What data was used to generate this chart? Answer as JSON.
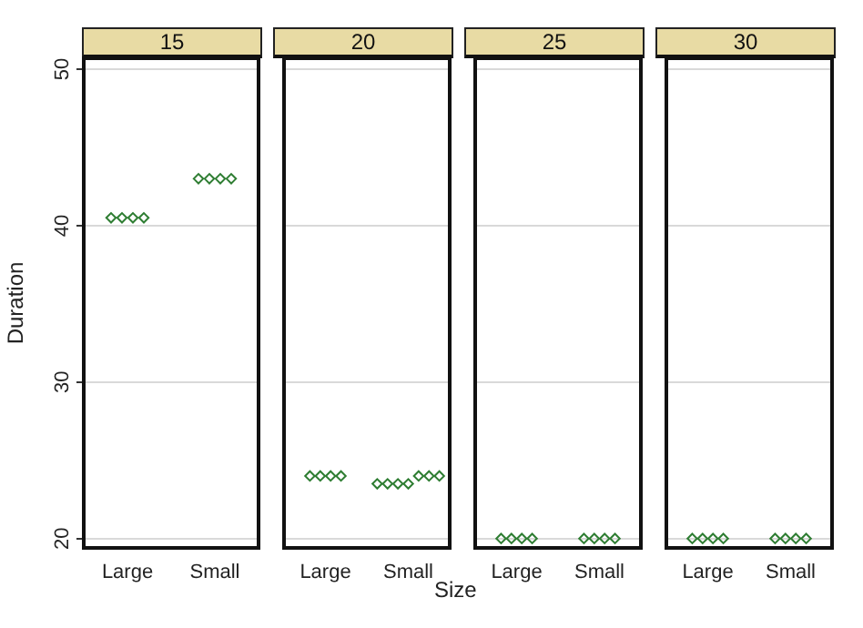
{
  "chart_data": [
    {
      "type": "scatter",
      "title": "15",
      "ylabel": "Duration",
      "categories": [
        "Large",
        "Small"
      ],
      "series": [
        {
          "color": "#2e7d32",
          "x": [
            "Large",
            "Large",
            "Large",
            "Large",
            "Small",
            "Small",
            "Small",
            "Small"
          ],
          "values": [
            40.5,
            40.5,
            40.5,
            40.5,
            43,
            43,
            43,
            43
          ]
        }
      ],
      "ylim": [
        19.4,
        50.7
      ],
      "yticks": [
        20,
        30,
        40,
        50
      ],
      "grid": "y",
      "marker": "diamond"
    },
    {
      "type": "scatter",
      "title": "20",
      "xlabel": "Size",
      "categories": [
        "Large",
        "Small"
      ],
      "series": [
        {
          "color": "#2e7d32",
          "x": [
            "Large",
            "Large",
            "Large",
            "Large",
            "Small",
            "Small",
            "Small",
            "Small",
            "Small",
            "Small",
            "Small"
          ],
          "values": [
            24,
            24,
            24,
            24,
            23.5,
            23.5,
            23.5,
            23.5,
            24,
            24,
            24
          ]
        }
      ],
      "ylim": [
        19.4,
        50.7
      ],
      "yticks": [
        20,
        30,
        40,
        50
      ],
      "grid": "y",
      "marker": "diamond",
      "tick_labels": "x"
    },
    {
      "type": "scatter",
      "title": "25",
      "categories": [
        "Large",
        "Small"
      ],
      "series": [
        {
          "color": "#2e7d32",
          "x": [
            "Large",
            "Large",
            "Large",
            "Large",
            "Small",
            "Small",
            "Small",
            "Small"
          ],
          "values": [
            20,
            20,
            20,
            20,
            20,
            20,
            20,
            20
          ]
        }
      ],
      "ylim": [
        19.4,
        50.7
      ],
      "yticks": [
        20,
        30,
        40,
        50
      ],
      "grid": "y",
      "marker": "diamond",
      "tick_labels": "x"
    },
    {
      "type": "scatter",
      "title": "30",
      "categories": [
        "Large",
        "Small"
      ],
      "series": [
        {
          "color": "#2e7d32",
          "x": [
            "Large",
            "Large",
            "Large",
            "Large",
            "Small",
            "Small",
            "Small",
            "Small"
          ],
          "values": [
            20,
            20,
            20,
            20,
            20,
            20,
            20,
            20
          ]
        }
      ],
      "ylim": [
        19.4,
        50.7
      ],
      "yticks": [
        20,
        30,
        40,
        50
      ],
      "grid": "y",
      "marker": "diamond",
      "tick_labels": "x"
    }
  ]
}
